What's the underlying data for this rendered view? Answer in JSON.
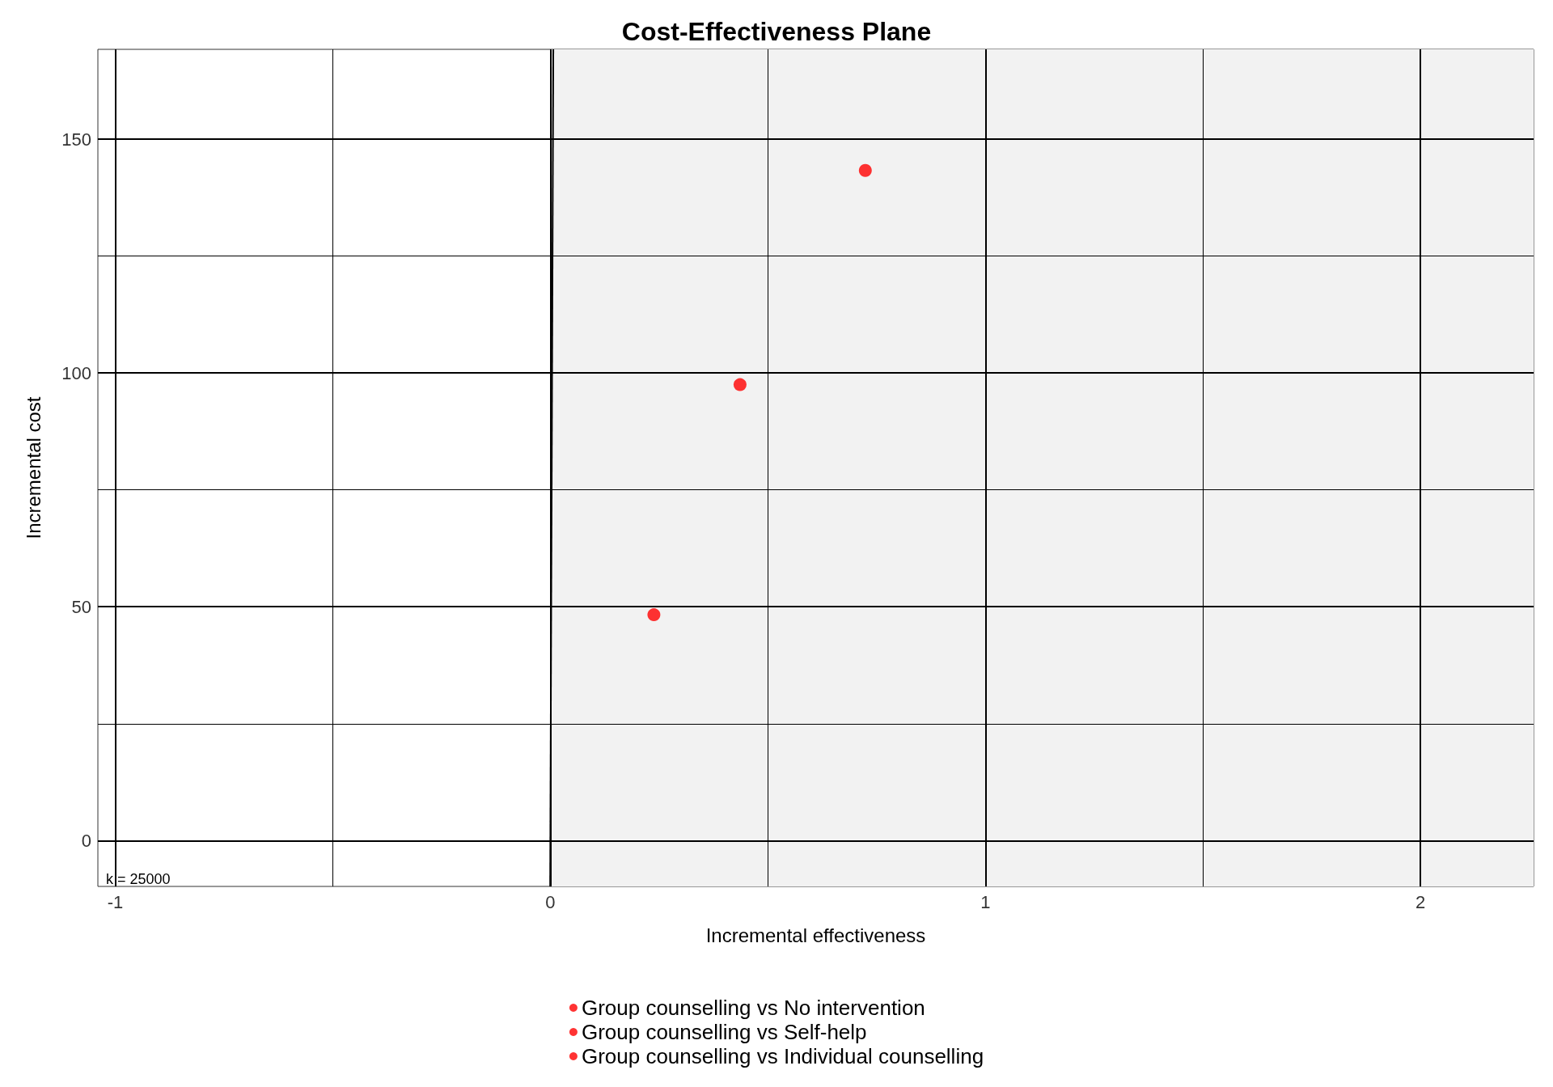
{
  "chart_data": {
    "type": "scatter",
    "title": "Cost-Effectiveness Plane",
    "xlabel": "Incremental effectiveness",
    "ylabel": "Incremental cost",
    "xlim": [
      -1.04,
      2.26
    ],
    "ylim": [
      -9.8,
      169.2
    ],
    "xticks": [
      -1,
      {
        "value": -0.5,
        "label": null
      },
      0,
      {
        "value": 0.5,
        "label": null
      },
      1,
      {
        "value": 1.5,
        "label": null
      },
      2
    ],
    "yticks": [
      0,
      {
        "value": 25,
        "label": null
      },
      50,
      {
        "value": 75,
        "label": null
      },
      100,
      {
        "value": 125,
        "label": null
      },
      150
    ],
    "grid": true,
    "legend": "bottom",
    "marker": "circle",
    "annotations": [
      "k = 25000"
    ],
    "bands": [
      {
        "axis": "x",
        "from": 0,
        "to": 2.26,
        "color": "#f2f2f2"
      }
    ],
    "series": [
      {
        "type": "line",
        "marker": "none",
        "color": "#000000",
        "x": [
          -0.0004,
          0.0068
        ],
        "values": [
          -9.8,
          169.2
        ]
      },
      {
        "name": "Group counselling vs No intervention",
        "color": "#ff0000",
        "x": [
          0.238
        ],
        "values": [
          48.3
        ]
      },
      {
        "name": "Group counselling vs Self-help",
        "color": "#ff0000",
        "x": [
          0.436
        ],
        "values": [
          97.5
        ]
      },
      {
        "name": "Group counselling vs Individual counselling",
        "color": "#ff0000",
        "x": [
          0.724
        ],
        "values": [
          143.3
        ]
      }
    ]
  }
}
